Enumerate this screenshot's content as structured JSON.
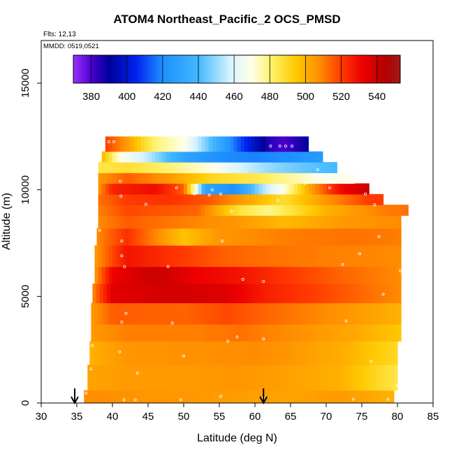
{
  "chart_data": {
    "type": "heatmap",
    "title": "ATOM4 Northeast_Pacific_2 OCS_PMSD",
    "subtitle": "Flts: 12,13",
    "legend_note": "MMDD: 0519,0521",
    "xlabel": "Latitude (deg N)",
    "ylabel": "Altitude (m)",
    "xlim": [
      30,
      85
    ],
    "ylim": [
      0,
      17000
    ],
    "x_ticks": [
      30,
      35,
      40,
      45,
      50,
      55,
      60,
      65,
      70,
      75,
      80,
      85
    ],
    "y_ticks": [
      0,
      5000,
      10000,
      15000
    ],
    "grid": false,
    "colorbar": {
      "range": [
        370,
        553
      ],
      "ticks": [
        380,
        400,
        420,
        440,
        460,
        480,
        500,
        520,
        540
      ],
      "stops": [
        {
          "v": 370,
          "c": "#9a32ff"
        },
        {
          "v": 380,
          "c": "#4b00d0"
        },
        {
          "v": 390,
          "c": "#00009a"
        },
        {
          "v": 405,
          "c": "#0022ee"
        },
        {
          "v": 420,
          "c": "#1e90ff"
        },
        {
          "v": 440,
          "c": "#42b8ff"
        },
        {
          "v": 458,
          "c": "#d8f4ff"
        },
        {
          "v": 470,
          "c": "#ffffe8"
        },
        {
          "v": 482,
          "c": "#fff060"
        },
        {
          "v": 495,
          "c": "#ffc800"
        },
        {
          "v": 508,
          "c": "#ff8c00"
        },
        {
          "v": 520,
          "c": "#ff3a00"
        },
        {
          "v": 532,
          "c": "#ee0000"
        },
        {
          "v": 545,
          "c": "#b20000"
        },
        {
          "v": 553,
          "c": "#a01818"
        }
      ]
    },
    "arrows_at_latitude": [
      34.7,
      61.2
    ],
    "curtain_rows": [
      {
        "alt_min": 0,
        "alt_max": 600,
        "lat_min": 36.0,
        "lat_max": 79.5,
        "values": [
          [
            36,
            508
          ],
          [
            45,
            506
          ],
          [
            55,
            505
          ],
          [
            65,
            503
          ],
          [
            72,
            505
          ],
          [
            79.5,
            500
          ]
        ]
      },
      {
        "alt_min": 600,
        "alt_max": 1800,
        "lat_min": 36.5,
        "lat_max": 80.0,
        "values": [
          [
            36.5,
            503
          ],
          [
            42,
            505
          ],
          [
            50,
            505
          ],
          [
            58,
            506
          ],
          [
            66,
            503
          ],
          [
            72,
            500
          ],
          [
            80,
            485
          ]
        ]
      },
      {
        "alt_min": 1800,
        "alt_max": 2900,
        "lat_min": 36.8,
        "lat_max": 80.0,
        "values": [
          [
            36.8,
            500
          ],
          [
            42,
            506
          ],
          [
            52,
            507
          ],
          [
            60,
            508
          ],
          [
            66,
            505
          ],
          [
            73,
            500
          ],
          [
            80,
            490
          ]
        ]
      },
      {
        "alt_min": 2900,
        "alt_max": 3700,
        "lat_min": 37.0,
        "lat_max": 80.5,
        "values": [
          [
            37,
            505
          ],
          [
            42,
            510
          ],
          [
            52,
            510
          ],
          [
            58,
            512
          ],
          [
            66,
            507
          ],
          [
            74,
            502
          ],
          [
            80.5,
            495
          ]
        ]
      },
      {
        "alt_min": 3700,
        "alt_max": 4700,
        "lat_min": 37.0,
        "lat_max": 80.5,
        "values": [
          [
            37,
            505
          ],
          [
            40,
            515
          ],
          [
            50,
            514
          ],
          [
            56,
            518
          ],
          [
            64,
            512
          ],
          [
            74,
            505
          ],
          [
            80.5,
            500
          ]
        ]
      },
      {
        "alt_min": 4700,
        "alt_max": 5600,
        "lat_min": 37.2,
        "lat_max": 80.5,
        "values": [
          [
            37.2,
            508
          ],
          [
            40,
            535
          ],
          [
            48,
            538
          ],
          [
            56,
            535
          ],
          [
            62,
            525
          ],
          [
            70,
            518
          ],
          [
            80.5,
            508
          ]
        ]
      },
      {
        "alt_min": 5600,
        "alt_max": 6400,
        "lat_min": 37.5,
        "lat_max": 80.5,
        "values": [
          [
            37.5,
            505
          ],
          [
            40,
            532
          ],
          [
            46,
            540
          ],
          [
            52,
            532
          ],
          [
            58,
            528
          ],
          [
            65,
            520
          ],
          [
            72,
            514
          ],
          [
            80.5,
            508
          ]
        ]
      },
      {
        "alt_min": 6400,
        "alt_max": 7400,
        "lat_min": 37.5,
        "lat_max": 80.5,
        "values": [
          [
            37.5,
            505
          ],
          [
            42,
            528
          ],
          [
            48,
            522
          ],
          [
            55,
            515
          ],
          [
            62,
            512
          ],
          [
            70,
            510
          ],
          [
            80.5,
            508
          ]
        ]
      },
      {
        "alt_min": 7400,
        "alt_max": 8200,
        "lat_min": 37.8,
        "lat_max": 80.5,
        "values": [
          [
            37.8,
            508
          ],
          [
            42,
            522
          ],
          [
            50,
            496
          ],
          [
            55,
            506
          ],
          [
            64,
            510
          ],
          [
            74,
            512
          ],
          [
            80.5,
            510
          ]
        ]
      },
      {
        "alt_min": 8200,
        "alt_max": 8800,
        "lat_min": 38.0,
        "lat_max": 80.5,
        "values": [
          [
            38,
            508
          ],
          [
            42,
            515
          ],
          [
            50,
            510
          ],
          [
            58,
            505
          ],
          [
            64,
            498
          ],
          [
            72,
            505
          ],
          [
            80.5,
            508
          ]
        ]
      },
      {
        "alt_min": 8800,
        "alt_max": 9300,
        "lat_min": 38.0,
        "lat_max": 81.5,
        "values": [
          [
            38,
            510
          ],
          [
            42,
            518
          ],
          [
            52,
            514
          ],
          [
            58,
            486
          ],
          [
            62,
            478
          ],
          [
            70,
            500
          ],
          [
            78,
            510
          ],
          [
            81.5,
            512
          ]
        ]
      },
      {
        "alt_min": 9300,
        "alt_max": 9800,
        "lat_min": 38.0,
        "lat_max": 78.0,
        "values": [
          [
            38,
            512
          ],
          [
            42,
            520
          ],
          [
            48,
            522
          ],
          [
            54,
            515
          ],
          [
            60,
            500
          ],
          [
            64,
            488
          ],
          [
            70,
            506
          ],
          [
            76,
            520
          ],
          [
            78,
            520
          ]
        ]
      },
      {
        "alt_min": 9800,
        "alt_max": 10300,
        "lat_min": 38.0,
        "lat_max": 76.0,
        "values": [
          [
            38,
            505
          ],
          [
            40,
            525
          ],
          [
            46,
            530
          ],
          [
            50,
            515
          ],
          [
            53,
            430
          ],
          [
            57,
            420
          ],
          [
            61,
            452
          ],
          [
            64,
            470
          ],
          [
            68,
            505
          ],
          [
            72,
            530
          ],
          [
            76,
            540
          ]
        ]
      },
      {
        "alt_min": 10300,
        "alt_max": 10800,
        "lat_min": 38.0,
        "lat_max": 74.0,
        "values": [
          [
            38,
            505
          ],
          [
            42,
            515
          ],
          [
            48,
            505
          ],
          [
            54,
            490
          ],
          [
            60,
            485
          ],
          [
            66,
            475
          ],
          [
            70,
            468
          ],
          [
            74,
            470
          ]
        ]
      },
      {
        "alt_min": 10800,
        "alt_max": 11300,
        "lat_min": 38.0,
        "lat_max": 71.5,
        "values": [
          [
            38,
            485
          ],
          [
            42,
            488
          ],
          [
            48,
            480
          ],
          [
            54,
            470
          ],
          [
            58,
            458
          ],
          [
            62,
            450
          ],
          [
            66,
            445
          ],
          [
            71.5,
            440
          ]
        ]
      },
      {
        "alt_min": 11300,
        "alt_max": 11800,
        "lat_min": 38.5,
        "lat_max": 69.5,
        "values": [
          [
            38.5,
            500
          ],
          [
            41,
            470
          ],
          [
            45,
            455
          ],
          [
            50,
            430
          ],
          [
            55,
            420
          ],
          [
            60,
            418
          ],
          [
            64,
            420
          ],
          [
            69.5,
            425
          ]
        ]
      },
      {
        "alt_min": 11800,
        "alt_max": 12500,
        "lat_min": 39.0,
        "lat_max": 67.5,
        "values": [
          [
            39,
            520
          ],
          [
            42,
            505
          ],
          [
            46,
            480
          ],
          [
            50,
            470
          ],
          [
            54,
            440
          ],
          [
            58,
            410
          ],
          [
            62,
            385
          ],
          [
            64,
            380
          ],
          [
            67.5,
            390
          ]
        ]
      }
    ],
    "sample_points": [
      [
        39.5,
        12250
      ],
      [
        40.2,
        12250
      ],
      [
        62.2,
        12050
      ],
      [
        63.5,
        12050
      ],
      [
        64.3,
        12050
      ],
      [
        65.2,
        12050
      ],
      [
        69.2,
        11900
      ],
      [
        68.5,
        10700
      ],
      [
        68.8,
        10950
      ],
      [
        72.5,
        10700
      ],
      [
        73.5,
        10700
      ],
      [
        41.1,
        10400
      ],
      [
        49.0,
        10100
      ],
      [
        51.5,
        9800
      ],
      [
        54.0,
        10000
      ],
      [
        55.2,
        9800
      ],
      [
        53.6,
        9750
      ],
      [
        41.2,
        9700
      ],
      [
        67.0,
        10300
      ],
      [
        70.5,
        10100
      ],
      [
        75.5,
        9800
      ],
      [
        76.8,
        9300
      ],
      [
        79.9,
        9500
      ],
      [
        44.7,
        9320
      ],
      [
        56.7,
        9000
      ],
      [
        63.2,
        9500
      ],
      [
        38.2,
        8100
      ],
      [
        41.3,
        7600
      ],
      [
        77.4,
        7800
      ],
      [
        55.4,
        7600
      ],
      [
        41.3,
        6900
      ],
      [
        74.7,
        7000
      ],
      [
        41.7,
        6400
      ],
      [
        72.3,
        6500
      ],
      [
        80.4,
        6200
      ],
      [
        47.8,
        6400
      ],
      [
        58.3,
        5800
      ],
      [
        61.2,
        5700
      ],
      [
        78.0,
        5100
      ],
      [
        41.9,
        4200
      ],
      [
        41.3,
        3800
      ],
      [
        48.4,
        3750
      ],
      [
        72.8,
        3850
      ],
      [
        57.5,
        3100
      ],
      [
        56.2,
        2900
      ],
      [
        61.2,
        3000
      ],
      [
        37.2,
        2700
      ],
      [
        41.0,
        2400
      ],
      [
        50.0,
        2200
      ],
      [
        76.3,
        1950
      ],
      [
        37.0,
        1600
      ],
      [
        43.5,
        1400
      ],
      [
        80.0,
        820
      ],
      [
        36.3,
        470
      ],
      [
        41.6,
        150
      ],
      [
        43.2,
        150
      ],
      [
        49.6,
        150
      ],
      [
        55.2,
        310
      ],
      [
        61.2,
        230
      ],
      [
        73.8,
        180
      ],
      [
        78.7,
        180
      ]
    ]
  }
}
